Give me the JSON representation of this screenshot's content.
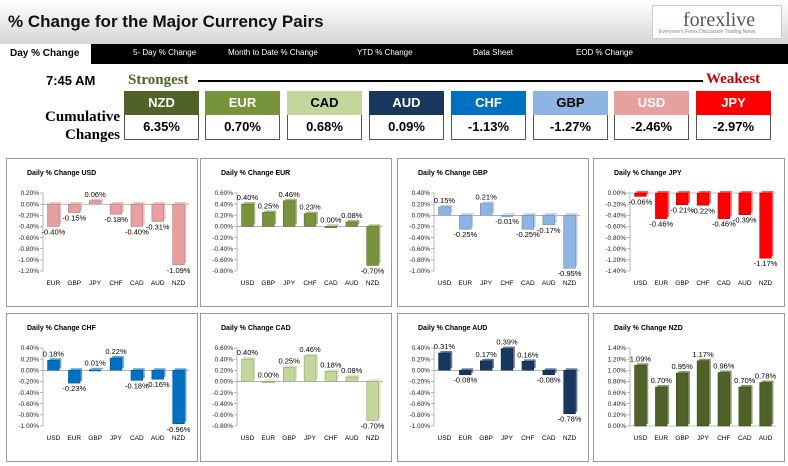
{
  "header": {
    "title": "% Change for the Major Currency Pairs",
    "logo_text": "forexlive",
    "logo_tagline": "Everyone's Forex Discussion Trading News"
  },
  "nav": {
    "items": [
      "Day % Change",
      "5- Day % Change",
      "Month to Date % Change",
      "YTD % Change",
      "Data Sheet",
      "EOD % Change"
    ]
  },
  "strength": {
    "time": "7:45 AM",
    "strongest": "Strongest",
    "weakest": "Weakest",
    "cumulative_label": "Cumulative Changes",
    "currencies": [
      {
        "code": "NZD",
        "value": "6.35%",
        "color": "#4f6228",
        "text": "#ffffff"
      },
      {
        "code": "EUR",
        "value": "0.70%",
        "color": "#77933c",
        "text": "#ffffff"
      },
      {
        "code": "CAD",
        "value": "0.68%",
        "color": "#c3d69b",
        "text": "#000000"
      },
      {
        "code": "AUD",
        "value": "0.09%",
        "color": "#17375e",
        "text": "#ffffff"
      },
      {
        "code": "CHF",
        "value": "-1.13%",
        "color": "#0070c0",
        "text": "#ffffff"
      },
      {
        "code": "GBP",
        "value": "-1.27%",
        "color": "#8db4e2",
        "text": "#000000"
      },
      {
        "code": "USD",
        "value": "-2.46%",
        "color": "#e6a0a0",
        "text": "#ffffff"
      },
      {
        "code": "JPY",
        "value": "-2.97%",
        "color": "#ff0000",
        "text": "#ffffff"
      }
    ]
  },
  "chart_data": [
    {
      "type": "bar",
      "title": "Daily % Change USD",
      "categories": [
        "EUR",
        "GBP",
        "JPY",
        "CHF",
        "CAD",
        "AUD",
        "NZD"
      ],
      "values": [
        -0.4,
        -0.15,
        0.06,
        -0.18,
        -0.4,
        -0.31,
        -1.09
      ],
      "labels": [
        "-0.40%",
        "-0.15%",
        "0.06%",
        "-0.18%",
        "-0.40%",
        "-0.31%",
        "-1.09%"
      ],
      "yticks": [
        "0.20%",
        "0.00%",
        "-0.20%",
        "-0.40%",
        "-0.60%",
        "-0.80%",
        "-1.00%",
        "-1.20%"
      ],
      "ylim": [
        -1.2,
        0.2
      ],
      "color": "#e6a0a0"
    },
    {
      "type": "bar",
      "title": "Daily % Change EUR",
      "categories": [
        "USD",
        "GBP",
        "JPY",
        "CHF",
        "CAD",
        "AUD",
        "NZD"
      ],
      "values": [
        0.4,
        0.25,
        0.46,
        0.23,
        0.0,
        0.08,
        -0.7
      ],
      "labels": [
        "0.40%",
        "0.25%",
        "0.46%",
        "0.23%",
        "0.00%",
        "0.08%",
        "-0.70%"
      ],
      "yticks": [
        "0.60%",
        "0.40%",
        "0.20%",
        "0.00%",
        "-0.20%",
        "-0.40%",
        "-0.60%",
        "-0.80%"
      ],
      "ylim": [
        -0.8,
        0.6
      ],
      "color": "#77933c"
    },
    {
      "type": "bar",
      "title": "Daily % Change GBP",
      "categories": [
        "USD",
        "EUR",
        "JPY",
        "CHF",
        "CAD",
        "AUD",
        "NZD"
      ],
      "values": [
        0.15,
        -0.25,
        0.21,
        -0.01,
        -0.25,
        -0.17,
        -0.95
      ],
      "labels": [
        "0.15%",
        "-0.25%",
        "0.21%",
        "-0.01%",
        "-0.25%",
        "-0.17%",
        "-0.95%"
      ],
      "yticks": [
        "0.40%",
        "0.20%",
        "0.00%",
        "-0.20%",
        "-0.40%",
        "-0.60%",
        "-0.80%",
        "-1.00%"
      ],
      "ylim": [
        -1.0,
        0.4
      ],
      "color": "#8db4e2"
    },
    {
      "type": "bar",
      "title": "Daily % Change JPY",
      "categories": [
        "USD",
        "EUR",
        "GBP",
        "CHF",
        "CAD",
        "AUD",
        "NZD"
      ],
      "values": [
        -0.06,
        -0.46,
        -0.21,
        -0.22,
        -0.46,
        -0.39,
        -1.17
      ],
      "labels": [
        "-0.06%",
        "-0.46%",
        "-0.21%",
        "-0.22%",
        "-0.46%",
        "-0.39%",
        "-1.17%"
      ],
      "yticks": [
        "0.00%",
        "-0.20%",
        "-0.40%",
        "-0.60%",
        "-0.80%",
        "-1.00%",
        "-1.20%",
        "-1.40%"
      ],
      "ylim": [
        -1.4,
        0.0
      ],
      "color": "#ff0000"
    },
    {
      "type": "bar",
      "title": "Daily % Change CHF",
      "categories": [
        "USD",
        "EUR",
        "GBP",
        "JPY",
        "CAD",
        "AUD",
        "NZD"
      ],
      "values": [
        0.18,
        -0.23,
        0.01,
        0.22,
        -0.18,
        -0.16,
        -0.96
      ],
      "labels": [
        "0.18%",
        "-0.23%",
        "0.01%",
        "0.22%",
        "-0.18%",
        "-0.16%",
        "-0.96%"
      ],
      "yticks": [
        "0.40%",
        "0.20%",
        "0.00%",
        "-0.20%",
        "-0.40%",
        "-0.60%",
        "-0.80%",
        "-1.00%"
      ],
      "ylim": [
        -1.0,
        0.4
      ],
      "color": "#0070c0"
    },
    {
      "type": "bar",
      "title": "Daily % Change CAD",
      "categories": [
        "USD",
        "EUR",
        "GBP",
        "JPY",
        "CHF",
        "AUD",
        "NZD"
      ],
      "values": [
        0.4,
        0.0,
        0.25,
        0.46,
        0.18,
        0.08,
        -0.7
      ],
      "labels": [
        "0.40%",
        "0.00%",
        "0.25%",
        "0.46%",
        "0.18%",
        "0.08%",
        "-0.70%"
      ],
      "yticks": [
        "0.60%",
        "0.40%",
        "0.20%",
        "0.00%",
        "-0.20%",
        "-0.40%",
        "-0.60%",
        "-0.80%"
      ],
      "ylim": [
        -0.8,
        0.6
      ],
      "color": "#c3d69b"
    },
    {
      "type": "bar",
      "title": "Daily % Change AUD",
      "categories": [
        "USD",
        "EUR",
        "GBP",
        "JPY",
        "CHF",
        "CAD",
        "NZD"
      ],
      "values": [
        0.31,
        -0.08,
        0.17,
        0.39,
        0.16,
        -0.08,
        -0.78
      ],
      "labels": [
        "0.31%",
        "-0.08%",
        "0.17%",
        "0.39%",
        "0.16%",
        "-0.08%",
        "-0.78%"
      ],
      "yticks": [
        "0.40%",
        "0.20%",
        "0.00%",
        "-0.20%",
        "-0.40%",
        "-0.60%",
        "-0.80%",
        "-1.00%"
      ],
      "ylim": [
        -1.0,
        0.4
      ],
      "color": "#17375e"
    },
    {
      "type": "bar",
      "title": "Daily % Change NZD",
      "categories": [
        "USD",
        "EUR",
        "GBP",
        "JPY",
        "CHF",
        "CAD",
        "AUD"
      ],
      "values": [
        1.09,
        0.7,
        0.95,
        1.17,
        0.96,
        0.7,
        0.78
      ],
      "labels": [
        "1.09%",
        "0.70%",
        "0.95%",
        "1.17%",
        "0.96%",
        "0.70%",
        "0.78%"
      ],
      "yticks": [
        "1.40%",
        "1.20%",
        "1.00%",
        "0.80%",
        "0.60%",
        "0.40%",
        "0.20%",
        "0.00%"
      ],
      "ylim": [
        0.0,
        1.4
      ],
      "color": "#4f6228"
    }
  ]
}
